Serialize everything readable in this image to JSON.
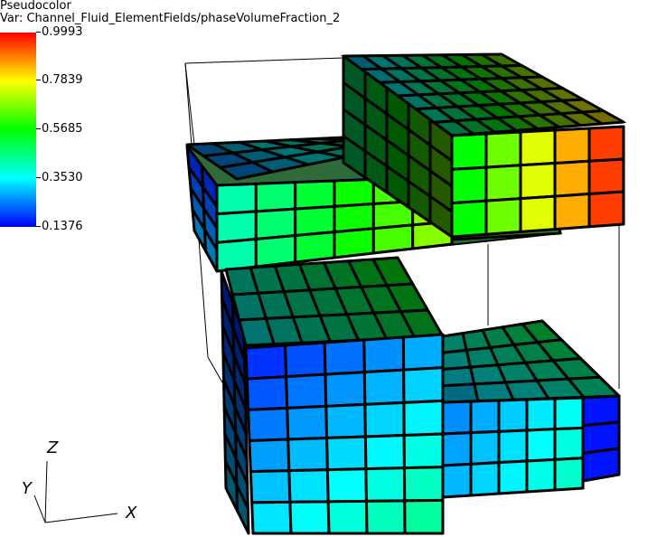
{
  "legend": {
    "title": "Pseudocolor",
    "variable": "Var: Channel_Fluid_ElementFields/phaseVolumeFraction_2",
    "ticks": [
      "0.9993",
      "0.7839",
      "0.5685",
      "0.3530",
      "0.1376"
    ]
  },
  "axes": {
    "x": "X",
    "y": "Y",
    "z": "Z"
  },
  "colors": {
    "max": "#ff0000",
    "mid_high": "#ffff00",
    "mid": "#00ff00",
    "mid_low": "#00ffff",
    "min": "#0000ff"
  }
}
